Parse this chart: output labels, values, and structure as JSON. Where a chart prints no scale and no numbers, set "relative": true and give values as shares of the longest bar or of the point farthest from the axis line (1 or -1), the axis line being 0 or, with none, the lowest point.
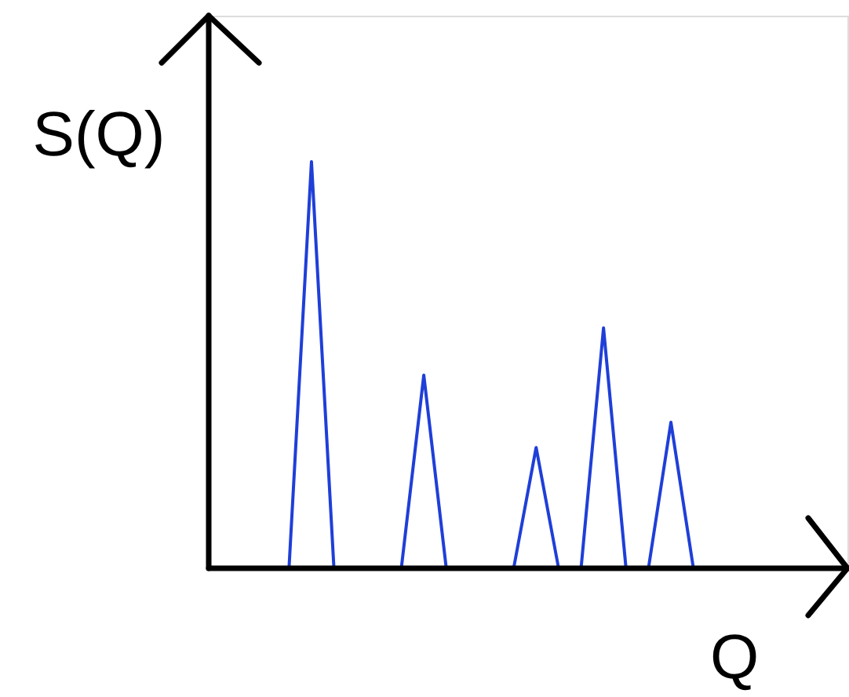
{
  "chart_data": {
    "type": "line",
    "relative": true,
    "xlabel": "Q",
    "ylabel": "S(Q)",
    "categories": [
      null,
      null,
      null,
      null,
      null,
      null,
      null,
      null,
      null,
      null,
      null,
      null,
      null,
      null,
      null,
      null,
      null,
      null,
      null
    ],
    "series": [
      {
        "color": "#1f3fd8",
        "values": [
          0,
          1,
          0,
          0,
          0,
          0,
          0.475,
          0,
          0,
          0,
          0,
          0.297,
          0,
          0,
          0.591,
          0,
          0,
          0.359,
          0
        ]
      }
    ]
  }
}
